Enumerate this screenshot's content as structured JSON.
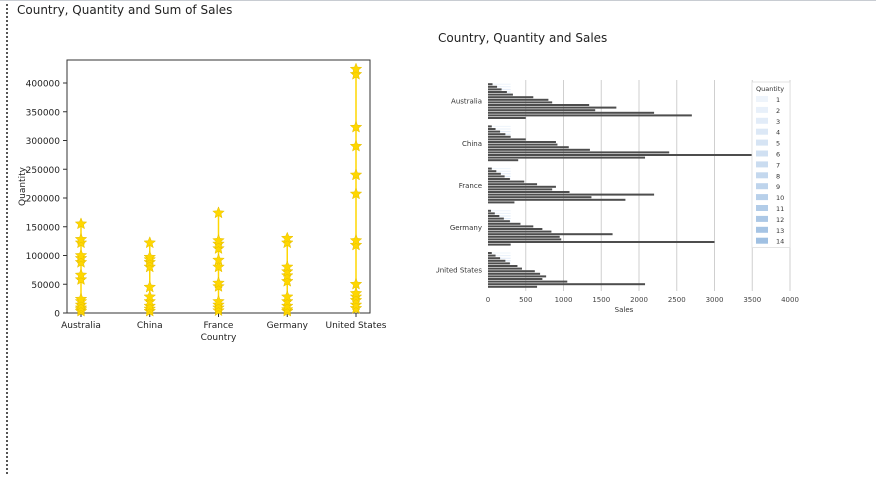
{
  "page": {
    "title": "Country, Quantity and Sum of Sales"
  },
  "chart_data": [
    {
      "type": "scatter",
      "marker": "star",
      "color": "#FFD700",
      "xlabel": "Country",
      "ylabel": "Quantity",
      "ylim": [
        0,
        440000
      ],
      "yticks": [
        0,
        50000,
        100000,
        150000,
        200000,
        250000,
        300000,
        350000,
        400000
      ],
      "categories": [
        "Australia",
        "China",
        "France",
        "Germany",
        "United States"
      ],
      "points": [
        [
          3000,
          6000,
          9000,
          14000,
          20000,
          24000,
          58000,
          66000,
          88000,
          95000,
          100000,
          122000,
          128000,
          155000
        ],
        [
          3000,
          7000,
          12000,
          20000,
          28000,
          45000,
          80000,
          88000,
          93000,
          97000,
          122000
        ],
        [
          4000,
          9000,
          14000,
          20000,
          46000,
          52000,
          80000,
          92000,
          112000,
          120000,
          126000,
          174000
        ],
        [
          3000,
          6000,
          12000,
          20000,
          28000,
          55000,
          65000,
          72000,
          80000,
          122000,
          130000
        ],
        [
          8000,
          14000,
          22000,
          28000,
          34000,
          50000,
          118000,
          126000,
          207000,
          240000,
          290000,
          323000,
          415000,
          424000
        ]
      ]
    },
    {
      "type": "bar",
      "orientation": "horizontal",
      "title": "Country, Quantity and Sales",
      "xlabel": "Sales",
      "xlim": [
        0,
        4000
      ],
      "xticks": [
        0,
        500,
        1000,
        1500,
        2000,
        2500,
        3000,
        3500,
        4000
      ],
      "grid": true,
      "legend": {
        "title": "Quantity",
        "position": "top-right",
        "entries": [
          "1",
          "2",
          "3",
          "4",
          "5",
          "6",
          "7",
          "8",
          "9",
          "10",
          "11",
          "12",
          "13",
          "14"
        ]
      },
      "categories": [
        "Australia",
        "China",
        "France",
        "Germany",
        "United States"
      ],
      "series": [
        {
          "name": "1",
          "values": [
            60,
            50,
            50,
            40,
            50
          ]
        },
        {
          "name": "2",
          "values": [
            120,
            100,
            110,
            90,
            100
          ]
        },
        {
          "name": "3",
          "values": [
            180,
            160,
            170,
            150,
            160
          ]
        },
        {
          "name": "4",
          "values": [
            250,
            230,
            220,
            210,
            230
          ]
        },
        {
          "name": "5",
          "values": [
            330,
            300,
            290,
            290,
            290
          ]
        },
        {
          "name": "6",
          "values": [
            600,
            500,
            480,
            430,
            390
          ]
        },
        {
          "name": "7",
          "values": [
            800,
            900,
            650,
            600,
            450
          ]
        },
        {
          "name": "8",
          "values": [
            850,
            920,
            900,
            720,
            620
          ]
        },
        {
          "name": "9",
          "values": [
            1340,
            1070,
            850,
            840,
            690
          ]
        },
        {
          "name": "10",
          "values": [
            1700,
            1350,
            1080,
            1650,
            770
          ]
        },
        {
          "name": "11",
          "values": [
            1420,
            2400,
            2200,
            950,
            720
          ]
        },
        {
          "name": "12",
          "values": [
            2200,
            3550,
            1370,
            970,
            1050
          ]
        },
        {
          "name": "13",
          "values": [
            2700,
            2080,
            1820,
            3000,
            2080
          ]
        },
        {
          "name": "14",
          "values": [
            500,
            400,
            350,
            300,
            650
          ]
        }
      ]
    }
  ]
}
